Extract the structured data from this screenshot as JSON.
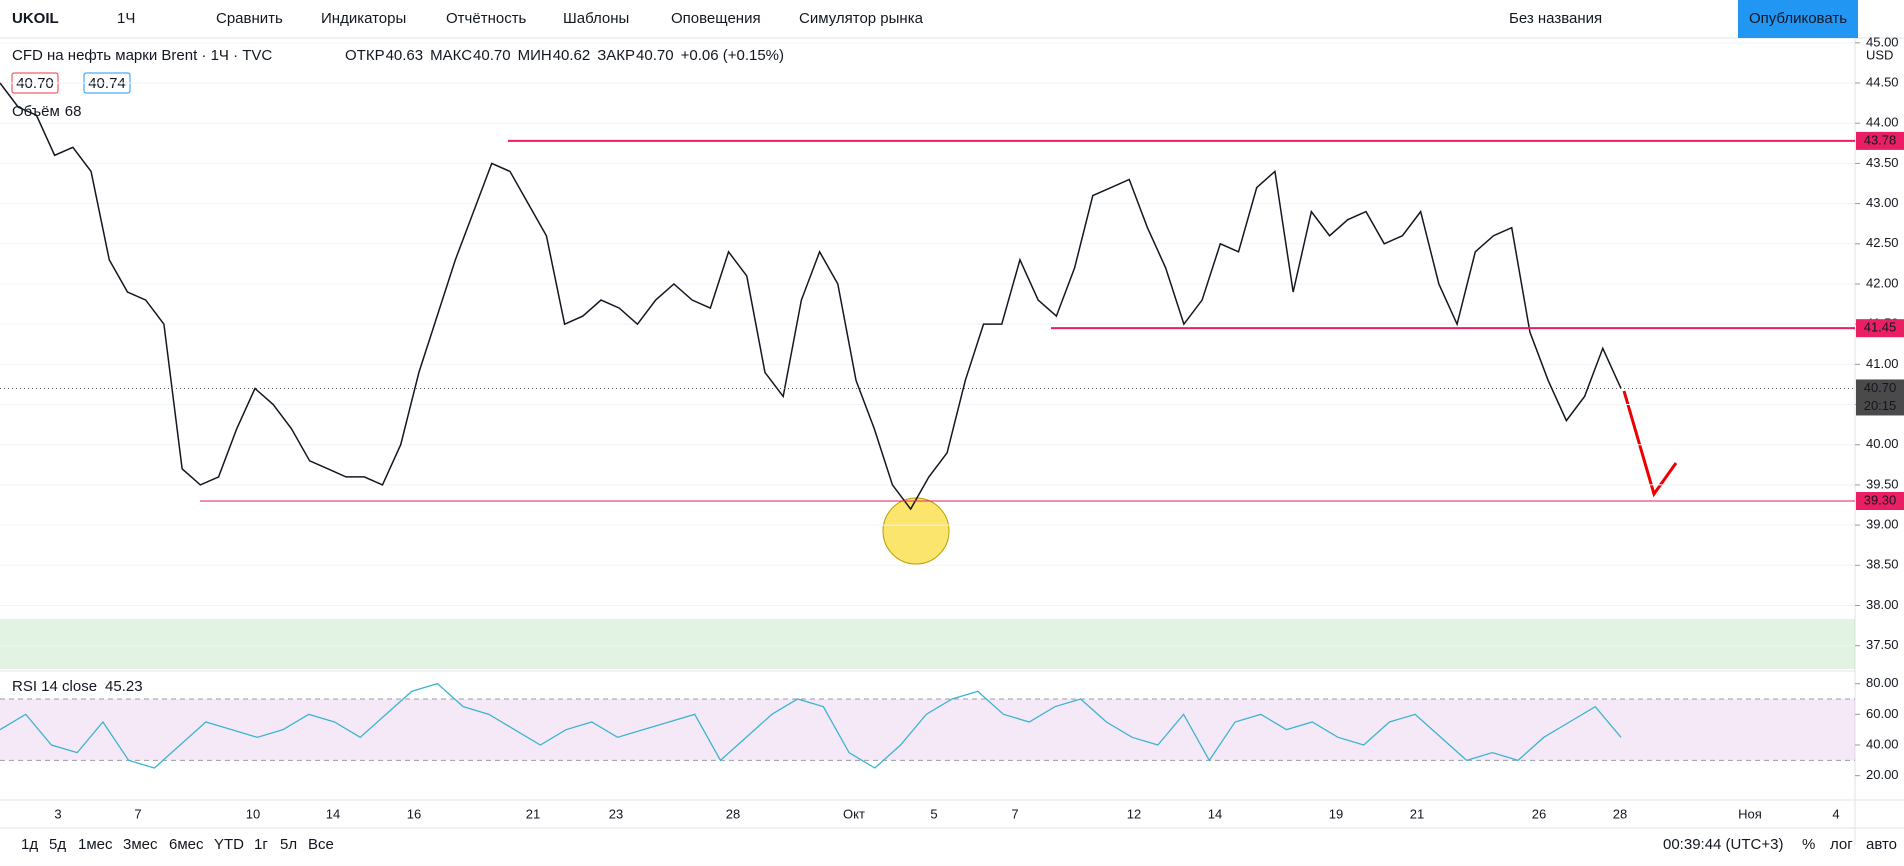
{
  "toolbar": {
    "symbol": "UKOIL",
    "interval": "1Ч",
    "items": [
      "Сравнить",
      "Индикаторы",
      "Отчётность",
      "Шаблоны",
      "Оповещения",
      "Симулятор рынка"
    ],
    "layout_name": "Без названия",
    "publish": "Опубликовать"
  },
  "legend": {
    "title": "CFD на нефть марки Brent · 1Ч · TVC",
    "ohlc": [
      {
        "label": "ОТКР",
        "value": "40.63"
      },
      {
        "label": "МАКС",
        "value": "40.70"
      },
      {
        "label": "МИН",
        "value": "40.62"
      },
      {
        "label": "ЗАКР",
        "value": "40.70"
      }
    ],
    "change": "+0.06 (+0.15%)",
    "bid": "40.70",
    "ask": "40.74",
    "volume_label": "Объём",
    "volume_value": "68"
  },
  "chart_data": [
    {
      "type": "line",
      "name": "price",
      "color": "#131722",
      "values": [
        44.5,
        44.2,
        44.1,
        43.6,
        43.7,
        43.4,
        42.3,
        41.9,
        41.8,
        41.5,
        39.7,
        39.5,
        39.6,
        40.2,
        40.7,
        40.5,
        40.2,
        39.8,
        39.7,
        39.6,
        39.6,
        39.5,
        40.0,
        40.9,
        41.6,
        42.3,
        42.9,
        43.5,
        43.4,
        43.0,
        42.6,
        41.5,
        41.6,
        41.8,
        41.7,
        41.5,
        41.8,
        42.0,
        41.8,
        41.7,
        42.4,
        42.1,
        40.9,
        40.6,
        41.8,
        42.4,
        42.0,
        40.8,
        40.2,
        39.5,
        39.2,
        39.6,
        39.9,
        40.8,
        41.5,
        41.5,
        42.3,
        41.8,
        41.6,
        42.2,
        43.1,
        43.2,
        43.3,
        42.7,
        42.2,
        41.5,
        41.8,
        42.5,
        42.4,
        43.2,
        43.4,
        41.9,
        42.9,
        42.6,
        42.8,
        42.9,
        42.5,
        42.6,
        42.9,
        42.0,
        41.5,
        42.4,
        42.6,
        42.7,
        41.4,
        40.8,
        40.3,
        40.6,
        41.2,
        40.7
      ],
      "ylim": [
        37.21,
        45.06
      ],
      "yticks": [
        {
          "value": 37.5,
          "label": "37.50"
        },
        {
          "value": 38,
          "label": "38.00"
        },
        {
          "value": 38.5,
          "label": "38.50"
        },
        {
          "value": 39,
          "label": "39.00"
        },
        {
          "value": 39.5,
          "label": "39.50"
        },
        {
          "value": 40,
          "label": "40.00"
        },
        {
          "value": 40.5,
          "label": "40.50"
        },
        {
          "value": 41,
          "label": "41.00"
        },
        {
          "value": 41.5,
          "label": "41.50"
        },
        {
          "value": 42,
          "label": "42.00"
        },
        {
          "value": 42.5,
          "label": "42.50"
        },
        {
          "value": 43,
          "label": "43.00"
        },
        {
          "value": 43.5,
          "label": "43.50"
        },
        {
          "value": 44,
          "label": "44.00"
        },
        {
          "value": 44.5,
          "label": "44.50"
        },
        {
          "value": 45,
          "label": "45.00"
        }
      ],
      "levels": [
        {
          "value": 43.78,
          "label": "43.78"
        },
        {
          "value": 41.45,
          "label": "41.45"
        },
        {
          "value": 39.3,
          "label": "39.30"
        }
      ],
      "level_color": "#e91e63",
      "last": {
        "value": 40.7,
        "label": "40.70"
      },
      "countdown": "20:15",
      "currency": "USD",
      "x_labels": [
        "3",
        "7",
        "10",
        "14",
        "16",
        "21",
        "23",
        "28",
        "Окт",
        "5",
        "7",
        "12",
        "14",
        "19",
        "21",
        "26",
        "28",
        "Ноя",
        "4"
      ]
    },
    {
      "type": "line",
      "name": "RSI",
      "title": "RSI 14 close",
      "value_label": "45.23",
      "color": "#3cb4d2",
      "values": [
        50,
        60,
        40,
        35,
        55,
        30,
        25,
        40,
        55,
        50,
        45,
        50,
        60,
        55,
        45,
        60,
        75,
        80,
        65,
        60,
        50,
        40,
        50,
        55,
        45,
        50,
        55,
        60,
        30,
        45,
        60,
        70,
        65,
        35,
        25,
        40,
        60,
        70,
        75,
        60,
        55,
        65,
        70,
        55,
        45,
        40,
        60,
        30,
        55,
        60,
        50,
        55,
        45,
        40,
        55,
        60,
        45,
        30,
        35,
        30,
        45,
        55,
        65,
        45
      ],
      "ylim": [
        7.4,
        86.3
      ],
      "band": [
        30,
        70
      ],
      "yticks": [
        {
          "value": 20,
          "label": "20.00"
        },
        {
          "value": 40,
          "label": "40.00"
        },
        {
          "value": 60,
          "label": "60.00"
        },
        {
          "value": 80,
          "label": "80.00"
        }
      ]
    }
  ],
  "bottom": {
    "ranges": [
      "1д",
      "5д",
      "1мес",
      "3мес",
      "6мес",
      "YTD",
      "1г",
      "5л",
      "Все"
    ],
    "time": "00:39:44 (UTC+3)",
    "percent": "%",
    "log": "лог",
    "auto": "авто"
  }
}
